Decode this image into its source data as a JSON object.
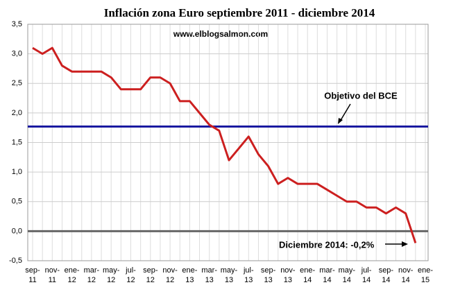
{
  "chart_data": {
    "type": "line",
    "title": "Inflación zona Euro  septiembre 2011 - diciembre 2014",
    "subtitle": "www.elblogsalmon.com",
    "categories": [
      "sep-11",
      null,
      "nov-11",
      null,
      "ene-12",
      null,
      "mar-12",
      null,
      "may-12",
      null,
      "jul-12",
      null,
      "sep-12",
      null,
      "nov-12",
      null,
      "ene-13",
      null,
      "mar-13",
      null,
      "may-13",
      null,
      "jul-13",
      null,
      "sep-13",
      null,
      "nov-13",
      null,
      "ene-14",
      null,
      "mar-14",
      null,
      "may-14",
      null,
      "jul-14",
      null,
      "sep-14",
      null,
      "nov-14",
      null,
      "ene-15"
    ],
    "series": [
      {
        "name": "Inflación",
        "color": "#cc1f1f",
        "values": [
          3.1,
          3.0,
          3.1,
          2.8,
          2.7,
          2.7,
          2.7,
          2.7,
          2.6,
          2.4,
          2.4,
          2.4,
          2.6,
          2.6,
          2.5,
          2.2,
          2.2,
          2.0,
          1.8,
          1.7,
          1.2,
          1.4,
          1.6,
          1.3,
          1.1,
          0.8,
          0.9,
          0.8,
          0.8,
          0.8,
          0.7,
          0.6,
          0.5,
          0.5,
          0.4,
          0.4,
          0.3,
          0.4,
          0.3,
          -0.2,
          null
        ]
      }
    ],
    "reference_lines": [
      {
        "value": 1.77,
        "color": "#1a1aa0",
        "label": "Objetivo del BCE"
      },
      {
        "value": 0,
        "color": "#666666"
      }
    ],
    "annotations": [
      {
        "text": "Diciembre 2014: -0,2%"
      }
    ],
    "ylim": [
      -0.5,
      3.5
    ],
    "yticks": [
      {
        "value": -0.5,
        "label": "-0,5"
      },
      {
        "value": 0,
        "label": "0,0"
      },
      {
        "value": 0.5,
        "label": "0,5"
      },
      {
        "value": 1,
        "label": "1,0"
      },
      {
        "value": 1.5,
        "label": "1,5"
      },
      {
        "value": 2,
        "label": "2,0"
      },
      {
        "value": 2.5,
        "label": "2,5"
      },
      {
        "value": 3,
        "label": "3,0"
      },
      {
        "value": 3.5,
        "label": "3,5"
      }
    ],
    "grid": true
  }
}
